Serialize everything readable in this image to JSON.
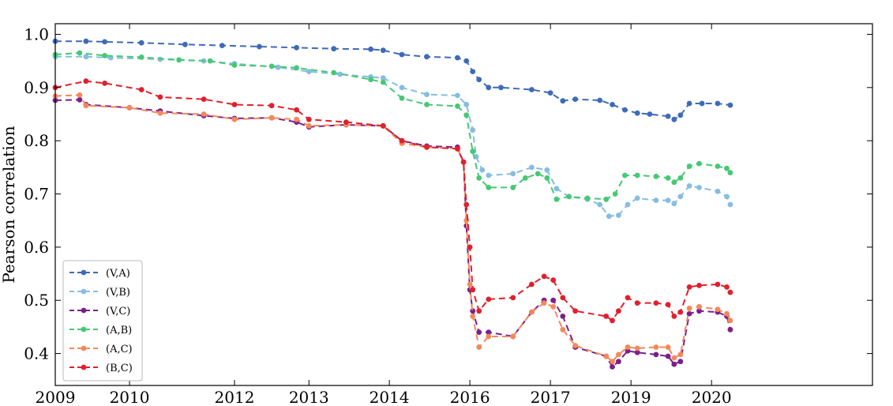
{
  "chart_data": {
    "type": "line",
    "title": "",
    "xlabel": "",
    "ylabel": "Pearson correlation",
    "xlim": [
      "2009-01-01",
      "2020-01-01"
    ],
    "ylim": [
      0.34,
      1.02
    ],
    "x_ticks": [
      {
        "date": "2009-01-01",
        "label": "2009"
      },
      {
        "date": "2010-01-01",
        "label": "2010"
      },
      {
        "date": "2011-06-01",
        "label": "2012"
      },
      {
        "date": "2012-06-01",
        "label": "2013"
      },
      {
        "date": "2013-07-01",
        "label": "2014"
      },
      {
        "date": "2014-08-01",
        "label": "2016"
      },
      {
        "date": "2015-09-01",
        "label": "2017"
      },
      {
        "date": "2016-10-01",
        "label": "2019"
      },
      {
        "date": "2017-11-01",
        "label": "2020"
      }
    ],
    "y_ticks": [
      {
        "value": 0.4,
        "label": "0.4"
      },
      {
        "value": 0.5,
        "label": "0.5"
      },
      {
        "value": 0.6,
        "label": "0.6"
      },
      {
        "value": 0.7,
        "label": "0.7"
      },
      {
        "value": 0.8,
        "label": "0.8"
      },
      {
        "value": 0.9,
        "label": "0.9"
      },
      {
        "value": 1.0,
        "label": "1.0"
      }
    ],
    "grid": false,
    "legend_position": "bottom-left",
    "series": [
      {
        "name": "(V,A)",
        "color": "#3e6bb8",
        "points": [
          [
            "2009-01-01",
            0.987
          ],
          [
            "2009-06-01",
            0.987
          ],
          [
            "2009-09-01",
            0.986
          ],
          [
            "2010-03-01",
            0.984
          ],
          [
            "2010-10-01",
            0.981
          ],
          [
            "2011-04-01",
            0.979
          ],
          [
            "2011-10-01",
            0.977
          ],
          [
            "2012-04-01",
            0.975
          ],
          [
            "2012-10-01",
            0.973
          ],
          [
            "2013-04-01",
            0.972
          ],
          [
            "2013-06-01",
            0.97
          ],
          [
            "2013-09-01",
            0.962
          ],
          [
            "2014-01-01",
            0.958
          ],
          [
            "2014-06-01",
            0.956
          ],
          [
            "2014-07-15",
            0.95
          ],
          [
            "2014-08-15",
            0.93
          ],
          [
            "2014-09-15",
            0.915
          ],
          [
            "2014-11-01",
            0.9
          ],
          [
            "2015-01-01",
            0.9
          ],
          [
            "2015-06-01",
            0.896
          ],
          [
            "2015-09-01",
            0.89
          ],
          [
            "2015-11-01",
            0.875
          ],
          [
            "2016-01-01",
            0.878
          ],
          [
            "2016-05-01",
            0.876
          ],
          [
            "2016-07-01",
            0.868
          ],
          [
            "2016-09-01",
            0.858
          ],
          [
            "2016-11-01",
            0.852
          ],
          [
            "2017-01-01",
            0.85
          ],
          [
            "2017-04-01",
            0.846
          ],
          [
            "2017-05-01",
            0.84
          ],
          [
            "2017-06-01",
            0.848
          ],
          [
            "2017-07-15",
            0.87
          ],
          [
            "2017-09-15",
            0.87
          ],
          [
            "2017-12-01",
            0.87
          ],
          [
            "2018-02-01",
            0.867
          ]
        ]
      },
      {
        "name": "(V,B)",
        "color": "#86bde0",
        "points": [
          [
            "2009-01-01",
            0.958
          ],
          [
            "2009-06-01",
            0.958
          ],
          [
            "2009-10-01",
            0.956
          ],
          [
            "2010-06-01",
            0.953
          ],
          [
            "2011-01-01",
            0.95
          ],
          [
            "2011-06-01",
            0.945
          ],
          [
            "2012-01-01",
            0.938
          ],
          [
            "2012-06-01",
            0.93
          ],
          [
            "2012-11-01",
            0.925
          ],
          [
            "2013-04-01",
            0.92
          ],
          [
            "2013-06-01",
            0.918
          ],
          [
            "2013-09-01",
            0.9
          ],
          [
            "2014-01-01",
            0.887
          ],
          [
            "2014-06-01",
            0.885
          ],
          [
            "2014-07-15",
            0.868
          ],
          [
            "2014-08-15",
            0.82
          ],
          [
            "2014-09-01",
            0.77
          ],
          [
            "2014-10-01",
            0.745
          ],
          [
            "2014-11-01",
            0.735
          ],
          [
            "2015-03-01",
            0.738
          ],
          [
            "2015-06-01",
            0.75
          ],
          [
            "2015-08-15",
            0.745
          ],
          [
            "2015-10-01",
            0.71
          ],
          [
            "2015-12-01",
            0.695
          ],
          [
            "2016-03-01",
            0.69
          ],
          [
            "2016-05-01",
            0.68
          ],
          [
            "2016-06-15",
            0.658
          ],
          [
            "2016-08-01",
            0.66
          ],
          [
            "2016-09-15",
            0.68
          ],
          [
            "2016-11-01",
            0.692
          ],
          [
            "2017-02-01",
            0.688
          ],
          [
            "2017-04-01",
            0.688
          ],
          [
            "2017-05-01",
            0.682
          ],
          [
            "2017-06-01",
            0.695
          ],
          [
            "2017-07-15",
            0.715
          ],
          [
            "2017-09-01",
            0.712
          ],
          [
            "2017-12-01",
            0.705
          ],
          [
            "2018-01-15",
            0.695
          ],
          [
            "2018-02-01",
            0.68
          ]
        ]
      },
      {
        "name": "(V,C)",
        "color": "#7b1f8c",
        "points": [
          [
            "2009-01-01",
            0.876
          ],
          [
            "2009-05-01",
            0.877
          ],
          [
            "2009-06-01",
            0.868
          ],
          [
            "2010-01-01",
            0.862
          ],
          [
            "2010-06-01",
            0.856
          ],
          [
            "2011-01-01",
            0.847
          ],
          [
            "2011-06-01",
            0.842
          ],
          [
            "2011-12-01",
            0.843
          ],
          [
            "2012-04-01",
            0.835
          ],
          [
            "2012-06-01",
            0.826
          ],
          [
            "2012-12-01",
            0.83
          ],
          [
            "2013-06-01",
            0.828
          ],
          [
            "2013-09-01",
            0.8
          ],
          [
            "2014-01-01",
            0.79
          ],
          [
            "2014-06-01",
            0.788
          ],
          [
            "2014-07-01",
            0.76
          ],
          [
            "2014-07-15",
            0.64
          ],
          [
            "2014-08-01",
            0.52
          ],
          [
            "2014-08-15",
            0.48
          ],
          [
            "2014-09-15",
            0.44
          ],
          [
            "2014-11-01",
            0.44
          ],
          [
            "2015-03-01",
            0.432
          ],
          [
            "2015-06-01",
            0.478
          ],
          [
            "2015-08-01",
            0.5
          ],
          [
            "2015-09-15",
            0.5
          ],
          [
            "2015-11-01",
            0.47
          ],
          [
            "2016-01-01",
            0.412
          ],
          [
            "2016-06-01",
            0.395
          ],
          [
            "2016-07-01",
            0.375
          ],
          [
            "2016-08-01",
            0.385
          ],
          [
            "2016-09-15",
            0.405
          ],
          [
            "2016-11-01",
            0.402
          ],
          [
            "2017-02-01",
            0.398
          ],
          [
            "2017-04-01",
            0.395
          ],
          [
            "2017-05-01",
            0.38
          ],
          [
            "2017-06-01",
            0.385
          ],
          [
            "2017-07-15",
            0.475
          ],
          [
            "2017-09-01",
            0.48
          ],
          [
            "2017-12-01",
            0.478
          ],
          [
            "2018-01-15",
            0.47
          ],
          [
            "2018-02-01",
            0.445
          ]
        ]
      },
      {
        "name": "(A,B)",
        "color": "#46c874",
        "points": [
          [
            "2009-01-01",
            0.962
          ],
          [
            "2009-05-01",
            0.965
          ],
          [
            "2009-09-01",
            0.96
          ],
          [
            "2010-03-01",
            0.957
          ],
          [
            "2010-09-01",
            0.952
          ],
          [
            "2011-02-01",
            0.95
          ],
          [
            "2011-06-01",
            0.942
          ],
          [
            "2011-12-01",
            0.94
          ],
          [
            "2012-04-01",
            0.937
          ],
          [
            "2012-10-01",
            0.928
          ],
          [
            "2013-04-01",
            0.915
          ],
          [
            "2013-06-01",
            0.91
          ],
          [
            "2013-09-01",
            0.88
          ],
          [
            "2014-01-01",
            0.868
          ],
          [
            "2014-06-01",
            0.865
          ],
          [
            "2014-07-15",
            0.848
          ],
          [
            "2014-08-15",
            0.78
          ],
          [
            "2014-09-15",
            0.73
          ],
          [
            "2014-11-01",
            0.712
          ],
          [
            "2015-03-01",
            0.712
          ],
          [
            "2015-05-01",
            0.73
          ],
          [
            "2015-07-01",
            0.738
          ],
          [
            "2015-08-15",
            0.73
          ],
          [
            "2015-10-01",
            0.69
          ],
          [
            "2015-12-01",
            0.695
          ],
          [
            "2016-03-01",
            0.692
          ],
          [
            "2016-06-01",
            0.69
          ],
          [
            "2016-07-15",
            0.7
          ],
          [
            "2016-09-01",
            0.735
          ],
          [
            "2016-11-01",
            0.735
          ],
          [
            "2017-02-01",
            0.733
          ],
          [
            "2017-04-01",
            0.73
          ],
          [
            "2017-05-01",
            0.722
          ],
          [
            "2017-06-01",
            0.73
          ],
          [
            "2017-07-15",
            0.752
          ],
          [
            "2017-09-01",
            0.757
          ],
          [
            "2017-12-01",
            0.752
          ],
          [
            "2018-01-15",
            0.748
          ],
          [
            "2018-02-01",
            0.74
          ]
        ]
      },
      {
        "name": "(A,C)",
        "color": "#f4885a",
        "points": [
          [
            "2009-01-01",
            0.884
          ],
          [
            "2009-05-01",
            0.886
          ],
          [
            "2009-06-01",
            0.866
          ],
          [
            "2010-01-01",
            0.862
          ],
          [
            "2010-06-01",
            0.852
          ],
          [
            "2011-01-01",
            0.85
          ],
          [
            "2011-06-01",
            0.84
          ],
          [
            "2011-12-01",
            0.843
          ],
          [
            "2012-04-01",
            0.84
          ],
          [
            "2012-06-01",
            0.828
          ],
          [
            "2012-12-01",
            0.83
          ],
          [
            "2013-06-01",
            0.828
          ],
          [
            "2013-09-01",
            0.795
          ],
          [
            "2014-01-01",
            0.788
          ],
          [
            "2014-06-01",
            0.785
          ],
          [
            "2014-07-01",
            0.76
          ],
          [
            "2014-07-15",
            0.65
          ],
          [
            "2014-08-01",
            0.53
          ],
          [
            "2014-08-15",
            0.47
          ],
          [
            "2014-09-15",
            0.412
          ],
          [
            "2014-11-01",
            0.432
          ],
          [
            "2015-03-01",
            0.432
          ],
          [
            "2015-06-01",
            0.478
          ],
          [
            "2015-08-01",
            0.495
          ],
          [
            "2015-09-15",
            0.488
          ],
          [
            "2015-11-01",
            0.445
          ],
          [
            "2016-01-01",
            0.415
          ],
          [
            "2016-06-01",
            0.395
          ],
          [
            "2016-07-01",
            0.385
          ],
          [
            "2016-08-01",
            0.398
          ],
          [
            "2016-09-15",
            0.412
          ],
          [
            "2016-11-01",
            0.41
          ],
          [
            "2017-02-01",
            0.412
          ],
          [
            "2017-04-01",
            0.412
          ],
          [
            "2017-05-01",
            0.392
          ],
          [
            "2017-06-01",
            0.398
          ],
          [
            "2017-07-15",
            0.485
          ],
          [
            "2017-09-01",
            0.488
          ],
          [
            "2017-12-01",
            0.483
          ],
          [
            "2018-01-15",
            0.475
          ],
          [
            "2018-02-01",
            0.462
          ]
        ]
      },
      {
        "name": "(B,C)",
        "color": "#e0202c",
        "points": [
          [
            "2009-01-01",
            0.9
          ],
          [
            "2009-06-01",
            0.912
          ],
          [
            "2009-09-01",
            0.908
          ],
          [
            "2010-03-01",
            0.896
          ],
          [
            "2010-06-01",
            0.882
          ],
          [
            "2011-01-01",
            0.878
          ],
          [
            "2011-06-01",
            0.868
          ],
          [
            "2011-12-01",
            0.866
          ],
          [
            "2012-04-01",
            0.858
          ],
          [
            "2012-06-01",
            0.84
          ],
          [
            "2012-12-01",
            0.835
          ],
          [
            "2013-06-01",
            0.828
          ],
          [
            "2013-09-01",
            0.8
          ],
          [
            "2014-01-01",
            0.788
          ],
          [
            "2014-06-01",
            0.785
          ],
          [
            "2014-07-01",
            0.76
          ],
          [
            "2014-07-15",
            0.68
          ],
          [
            "2014-08-01",
            0.6
          ],
          [
            "2014-08-15",
            0.52
          ],
          [
            "2014-09-15",
            0.48
          ],
          [
            "2014-11-01",
            0.502
          ],
          [
            "2015-03-01",
            0.505
          ],
          [
            "2015-06-01",
            0.53
          ],
          [
            "2015-08-01",
            0.545
          ],
          [
            "2015-09-15",
            0.538
          ],
          [
            "2015-11-01",
            0.505
          ],
          [
            "2016-01-01",
            0.48
          ],
          [
            "2016-06-01",
            0.47
          ],
          [
            "2016-07-01",
            0.462
          ],
          [
            "2016-08-01",
            0.48
          ],
          [
            "2016-09-15",
            0.505
          ],
          [
            "2016-11-01",
            0.495
          ],
          [
            "2017-02-01",
            0.495
          ],
          [
            "2017-04-01",
            0.492
          ],
          [
            "2017-05-01",
            0.47
          ],
          [
            "2017-06-01",
            0.478
          ],
          [
            "2017-07-15",
            0.525
          ],
          [
            "2017-09-01",
            0.528
          ],
          [
            "2017-12-01",
            0.53
          ],
          [
            "2018-01-15",
            0.525
          ],
          [
            "2018-02-01",
            0.515
          ]
        ]
      }
    ]
  }
}
